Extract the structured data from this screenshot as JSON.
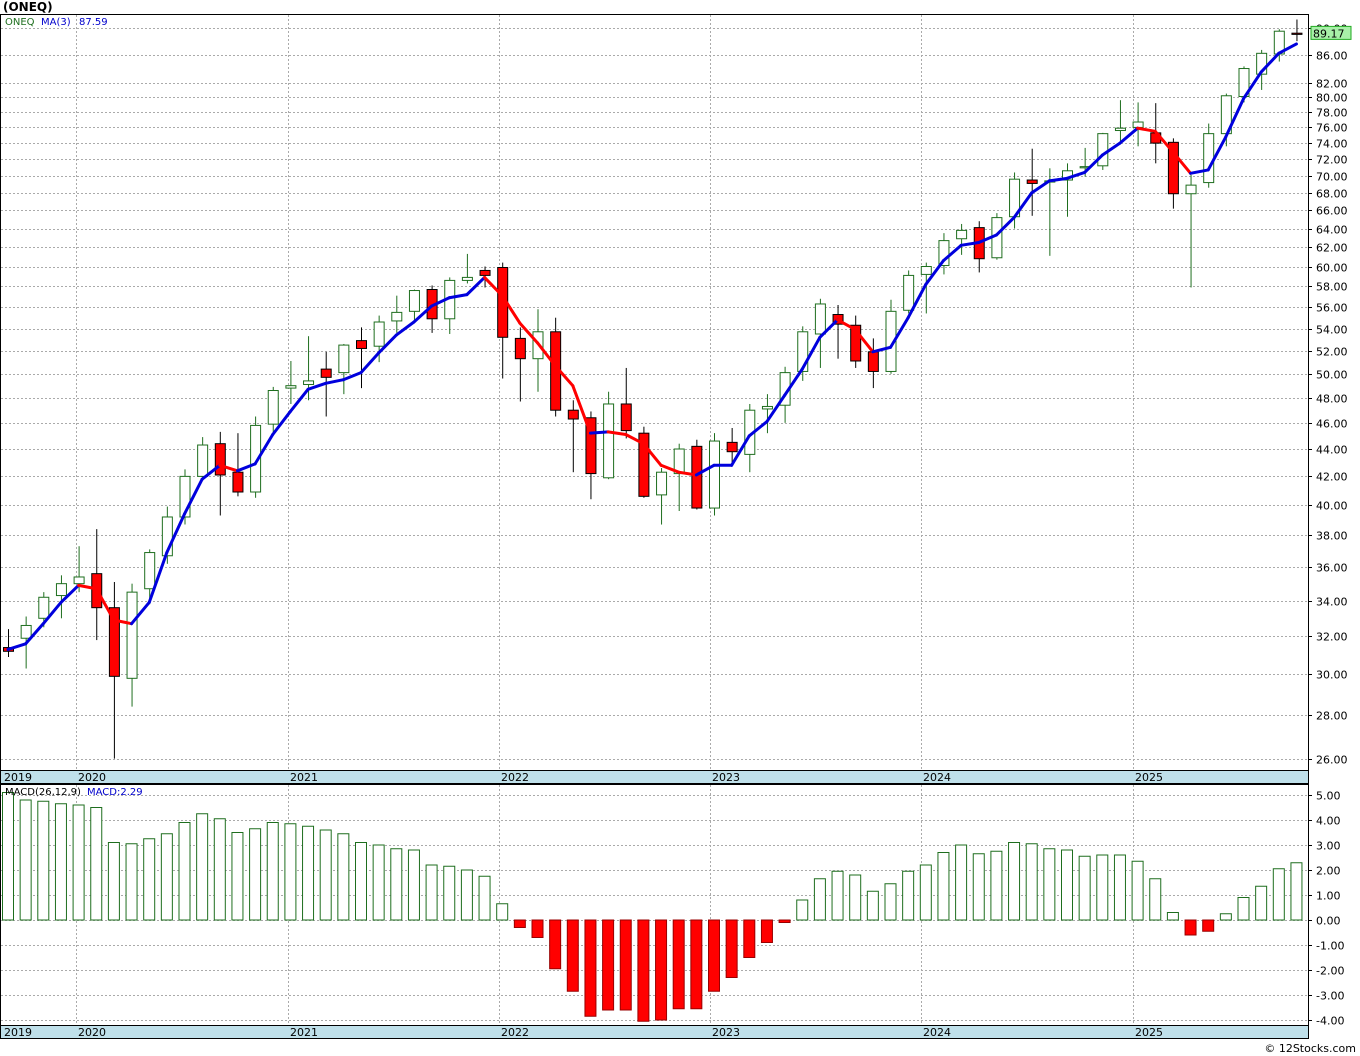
{
  "header": {
    "symbol_title": "(ONEQ)"
  },
  "price_panel": {
    "symbol_label": "ONEQ",
    "ma_label": "MA(3)",
    "ma_value": "87.59",
    "last_price": "89.17",
    "last_price_color": "#22bb22"
  },
  "macd_panel": {
    "label": "MACD(26,12,9)",
    "value_label": "MACD:2.29"
  },
  "footer": {
    "credit": "© 12Stocks.com"
  },
  "colors": {
    "up_candle": "#1e6e1e",
    "down_candle": "#ff0000",
    "ma_up": "#0000dd",
    "ma_down": "#ff0000",
    "grid": "#aaaaaa",
    "axis_strip": "#bfe0ea"
  },
  "chart_data": [
    {
      "type": "candlestick",
      "interval": "monthly",
      "x_range": [
        "2019-10",
        "2025-09"
      ],
      "ylim": [
        25.5,
        92
      ],
      "y_scale": "log",
      "yticks": [
        26,
        28,
        30,
        32,
        34,
        36,
        38,
        40,
        42,
        44,
        46,
        48,
        50,
        52,
        54,
        56,
        58,
        60,
        62,
        64,
        66,
        68,
        70,
        72,
        74,
        76,
        78,
        80,
        82,
        86,
        90
      ],
      "ytick_labels": [
        "26.00",
        "28.00",
        "30.00",
        "32.00",
        "34.00",
        "36.00",
        "38.00",
        "40.00",
        "42.00",
        "44.00",
        "46.00",
        "48.00",
        "50.00",
        "52.00",
        "54.00",
        "56.00",
        "58.00",
        "60.00",
        "62.00",
        "64.00",
        "66.00",
        "68.00",
        "70.00",
        "72.00",
        "74.00",
        "76.00",
        "78.00",
        "80.00",
        "82.00",
        "86.00",
        "90.00"
      ],
      "xtick_labels": [
        "2019",
        "2020",
        "2021",
        "2022",
        "2023",
        "2024",
        "2025"
      ],
      "grid": true,
      "ohlc": [
        [
          31.4,
          32.4,
          30.9,
          31.2
        ],
        [
          31.9,
          33.1,
          30.3,
          32.6
        ],
        [
          33.0,
          34.5,
          32.5,
          34.2
        ],
        [
          34.3,
          35.5,
          33.0,
          35.0
        ],
        [
          35.0,
          37.3,
          34.5,
          35.4
        ],
        [
          35.6,
          38.4,
          31.8,
          33.6
        ],
        [
          33.6,
          35.1,
          26.0,
          29.9
        ],
        [
          29.8,
          35.0,
          28.4,
          34.5
        ],
        [
          34.7,
          37.1,
          33.8,
          36.9
        ],
        [
          36.7,
          39.9,
          36.2,
          39.2
        ],
        [
          39.2,
          42.5,
          38.7,
          42.0
        ],
        [
          42.0,
          44.9,
          41.7,
          44.3
        ],
        [
          44.4,
          45.3,
          39.3,
          42.1
        ],
        [
          42.3,
          45.2,
          40.6,
          40.9
        ],
        [
          40.9,
          46.5,
          40.5,
          45.8
        ],
        [
          45.9,
          48.9,
          45.1,
          48.6
        ],
        [
          48.8,
          51.1,
          47.5,
          49.0
        ],
        [
          49.1,
          53.3,
          47.8,
          49.4
        ],
        [
          50.4,
          51.9,
          46.5,
          49.7
        ],
        [
          50.1,
          52.6,
          48.3,
          52.5
        ],
        [
          52.9,
          54.1,
          48.8,
          52.2
        ],
        [
          52.4,
          55.2,
          51.0,
          54.6
        ],
        [
          54.7,
          57.1,
          53.6,
          55.5
        ],
        [
          55.6,
          57.7,
          54.7,
          57.6
        ],
        [
          57.7,
          58.1,
          53.6,
          54.9
        ],
        [
          54.9,
          58.9,
          53.5,
          58.6
        ],
        [
          58.6,
          61.3,
          58.3,
          58.9
        ],
        [
          59.6,
          60.0,
          57.9,
          59.1
        ],
        [
          59.9,
          60.4,
          49.6,
          53.2
        ],
        [
          53.1,
          54.1,
          47.7,
          51.3
        ],
        [
          51.3,
          55.8,
          48.5,
          53.7
        ],
        [
          53.7,
          55.0,
          46.5,
          47.0
        ],
        [
          47.0,
          47.8,
          42.3,
          46.3
        ],
        [
          46.4,
          46.9,
          40.4,
          42.2
        ],
        [
          41.9,
          48.5,
          41.8,
          47.5
        ],
        [
          47.5,
          50.5,
          44.8,
          45.4
        ],
        [
          45.2,
          45.7,
          40.5,
          40.6
        ],
        [
          40.7,
          42.6,
          38.7,
          42.3
        ],
        [
          42.2,
          44.4,
          39.6,
          44.0
        ],
        [
          44.2,
          44.7,
          39.7,
          39.8
        ],
        [
          39.8,
          45.2,
          39.3,
          44.6
        ],
        [
          44.5,
          45.6,
          42.8,
          43.8
        ],
        [
          43.6,
          47.5,
          42.3,
          47.0
        ],
        [
          47.1,
          48.3,
          45.2,
          47.3
        ],
        [
          47.4,
          50.6,
          46.0,
          50.1
        ],
        [
          50.2,
          54.2,
          49.4,
          53.7
        ],
        [
          53.5,
          56.8,
          50.5,
          56.3
        ],
        [
          55.3,
          56.2,
          51.3,
          54.4
        ],
        [
          54.3,
          55.2,
          50.5,
          51.1
        ],
        [
          51.9,
          53.1,
          48.8,
          50.2
        ],
        [
          50.2,
          56.7,
          50.0,
          55.6
        ],
        [
          55.7,
          59.6,
          55.4,
          59.1
        ],
        [
          59.2,
          60.4,
          55.4,
          60.0
        ],
        [
          60.1,
          63.5,
          59.2,
          62.7
        ],
        [
          62.9,
          64.5,
          61.2,
          63.8
        ],
        [
          64.1,
          64.8,
          59.4,
          60.8
        ],
        [
          60.9,
          65.7,
          60.7,
          65.2
        ],
        [
          65.3,
          70.4,
          64.0,
          69.6
        ],
        [
          69.5,
          73.3,
          65.4,
          69.1
        ],
        [
          69.3,
          70.9,
          61.1,
          69.4
        ],
        [
          69.5,
          71.5,
          65.3,
          70.6
        ],
        [
          71.0,
          73.4,
          69.9,
          71.1
        ],
        [
          71.2,
          75.3,
          70.7,
          75.2
        ],
        [
          75.6,
          79.6,
          73.9,
          75.9
        ],
        [
          76.0,
          79.3,
          73.6,
          76.7
        ],
        [
          75.3,
          79.2,
          71.5,
          74.0
        ],
        [
          74.1,
          74.6,
          66.2,
          67.9
        ],
        [
          67.9,
          70.1,
          57.9,
          68.9
        ],
        [
          69.2,
          76.5,
          68.6,
          75.2
        ],
        [
          75.2,
          80.5,
          73.6,
          80.2
        ],
        [
          80.1,
          84.3,
          79.3,
          84.0
        ],
        [
          83.2,
          86.7,
          81.0,
          86.2
        ],
        [
          86.1,
          89.8,
          85.0,
          89.5
        ],
        [
          89.2,
          91.3,
          88.0,
          89.17
        ]
      ],
      "ma_period": 3,
      "ma": [
        31.3,
        31.6,
        32.7,
        33.9,
        34.9,
        34.7,
        32.9,
        32.7,
        33.9,
        36.9,
        39.4,
        41.8,
        42.8,
        42.4,
        42.9,
        45.1,
        46.9,
        48.7,
        49.2,
        49.5,
        50.1,
        51.8,
        53.4,
        54.6,
        56.1,
        56.9,
        57.2,
        58.9,
        57.1,
        54.5,
        52.7,
        50.7,
        49.0,
        45.2,
        45.3,
        45.1,
        44.4,
        42.8,
        42.3,
        42.1,
        42.8,
        42.8,
        45.0,
        46.1,
        48.2,
        50.4,
        53.2,
        54.8,
        53.9,
        51.9,
        52.3,
        55.0,
        58.2,
        60.6,
        62.2,
        62.5,
        63.3,
        65.2,
        68.0,
        69.4,
        69.7,
        70.4,
        72.5,
        74.0,
        75.9,
        75.5,
        72.9,
        70.3,
        70.7,
        74.8,
        79.8,
        83.5,
        86.2,
        87.59
      ]
    },
    {
      "type": "bar",
      "name": "MACD(26,12,9)",
      "ylim": [
        -4.2,
        5.4
      ],
      "yticks": [
        -4,
        -3,
        -2,
        -1,
        0,
        1,
        2,
        3,
        4,
        5
      ],
      "ytick_labels": [
        "-4.00",
        "-3.00",
        "-2.00",
        "-1.00",
        "0.00",
        "1.00",
        "2.00",
        "3.00",
        "4.00",
        "5.00"
      ],
      "xtick_labels": [
        "2019",
        "2020",
        "2021",
        "2022",
        "2023",
        "2024",
        "2025"
      ],
      "values": [
        5.1,
        4.8,
        4.75,
        4.65,
        4.6,
        4.5,
        3.1,
        3.05,
        3.25,
        3.45,
        3.9,
        4.25,
        4.05,
        3.5,
        3.65,
        3.9,
        3.85,
        3.75,
        3.6,
        3.45,
        3.1,
        3.0,
        2.85,
        2.8,
        2.2,
        2.15,
        2.0,
        1.75,
        0.65,
        -0.3,
        -0.7,
        -1.95,
        -2.85,
        -3.85,
        -3.6,
        -3.6,
        -4.05,
        -4.0,
        -3.55,
        -3.55,
        -2.85,
        -2.3,
        -1.5,
        -0.9,
        -0.1,
        0.8,
        1.65,
        1.95,
        1.8,
        1.15,
        1.45,
        1.95,
        2.2,
        2.7,
        3.0,
        2.65,
        2.75,
        3.1,
        3.05,
        2.85,
        2.8,
        2.55,
        2.6,
        2.6,
        2.35,
        1.65,
        0.3,
        -0.6,
        -0.45,
        0.25,
        0.9,
        1.35,
        2.05,
        2.29
      ]
    }
  ]
}
